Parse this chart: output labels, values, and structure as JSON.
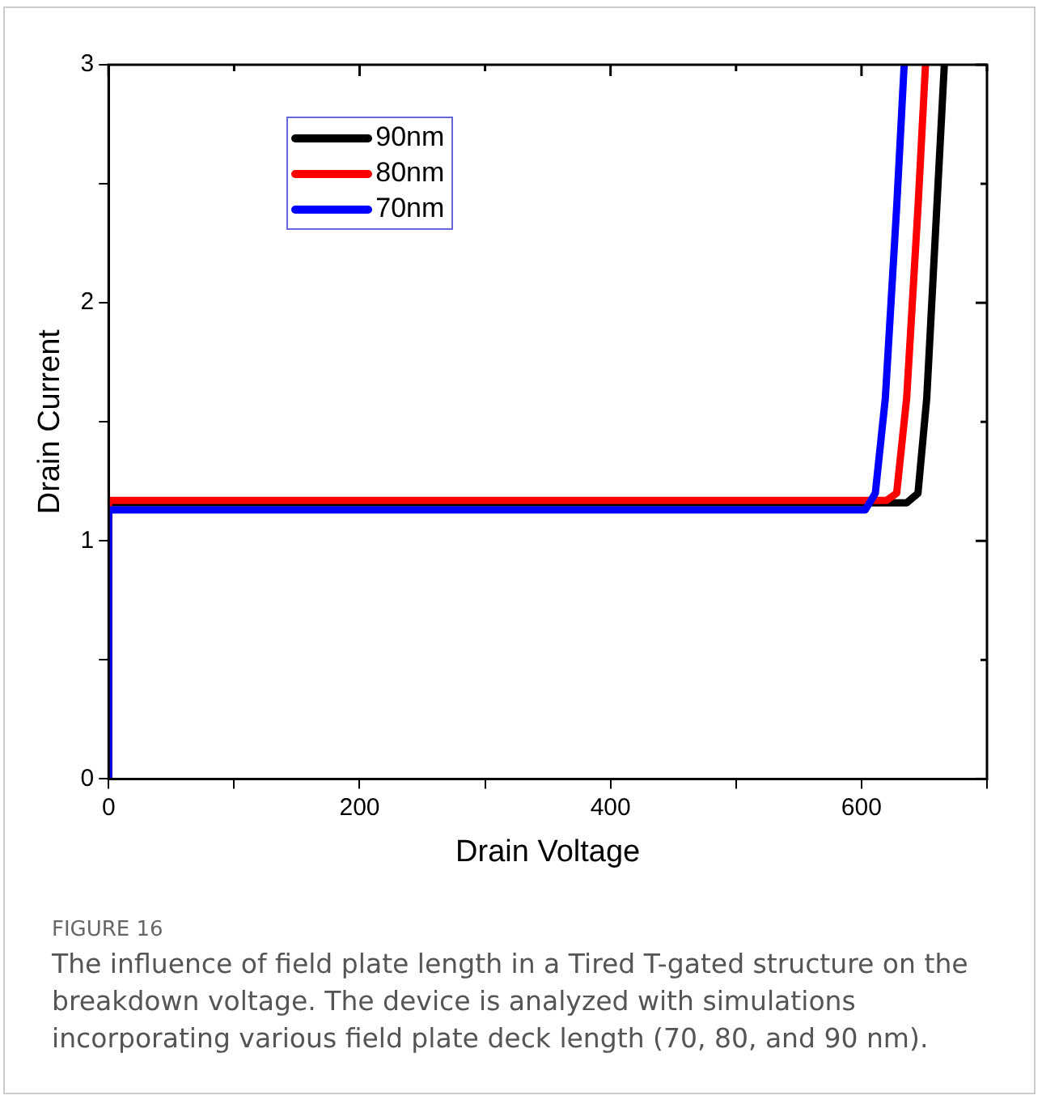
{
  "chart_data": {
    "type": "line",
    "xlabel": "Drain Voltage",
    "ylabel": "Drain Current",
    "xlim": [
      0,
      700
    ],
    "ylim": [
      0,
      3
    ],
    "xticks": [
      0,
      {
        "value": 100,
        "label": null
      },
      200,
      {
        "value": 300,
        "label": null
      },
      400,
      {
        "value": 500,
        "label": null
      },
      600,
      {
        "value": 700,
        "label": null
      }
    ],
    "yticks": [
      0,
      {
        "value": 0.5,
        "label": null
      },
      1,
      {
        "value": 1.5,
        "label": null
      },
      2,
      {
        "value": 2.5,
        "label": null
      },
      3
    ],
    "grid": false,
    "legend": "top left",
    "marker": "none",
    "line_style": "solid",
    "series": [
      {
        "name": "90nm",
        "color": "#000000",
        "x": [
          0,
          0,
          636,
          645,
          652,
          660,
          666
        ],
        "values": [
          0,
          1.16,
          1.16,
          1.2,
          1.6,
          2.4,
          3
        ]
      },
      {
        "name": "80nm",
        "color": "#ff0000",
        "x": [
          0,
          0,
          620,
          628,
          636,
          645,
          651
        ],
        "values": [
          0,
          1.17,
          1.17,
          1.2,
          1.6,
          2.4,
          3
        ]
      },
      {
        "name": "70nm",
        "color": "#0000ff",
        "x": [
          0,
          0,
          603,
          611,
          619,
          628,
          634
        ],
        "values": [
          0,
          1.13,
          1.13,
          1.2,
          1.6,
          2.4,
          3
        ]
      }
    ],
    "annotations": [
      "FIGURE 16",
      "The influence of field plate length in a Tired T-gated structure on the breakdown voltage. The device is analyzed with simulations incorporating various field plate deck length (70, 80, and 90 nm)."
    ]
  }
}
